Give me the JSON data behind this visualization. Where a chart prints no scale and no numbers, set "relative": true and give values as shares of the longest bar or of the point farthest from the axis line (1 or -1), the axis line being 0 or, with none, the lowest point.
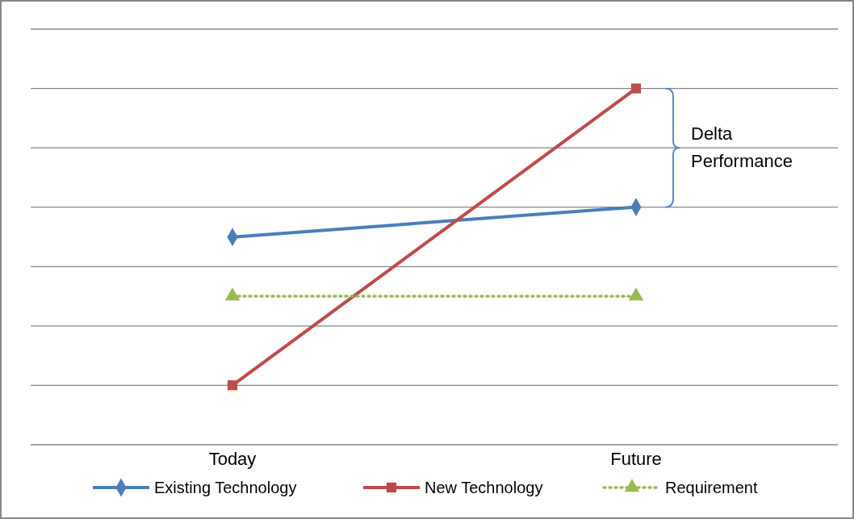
{
  "chart_data": {
    "type": "line",
    "relative": true,
    "categories": [
      "Today",
      "Future"
    ],
    "series": [
      {
        "name": "Existing Technology",
        "color": "#4a7ebb",
        "values": [
          0.583,
          0.667
        ],
        "marker": "diamond",
        "line_style": "solid"
      },
      {
        "name": "New Technology",
        "color": "#be4b48",
        "values": [
          0.167,
          1
        ],
        "marker": "square",
        "line_style": "solid"
      },
      {
        "name": "Requirement",
        "color": "#98b954",
        "values": [
          0.417,
          0.417
        ],
        "marker": "triangle",
        "line_style": "dotted"
      }
    ],
    "annotations": [
      "Delta Performance"
    ],
    "grid": true,
    "legend": "bottom"
  }
}
